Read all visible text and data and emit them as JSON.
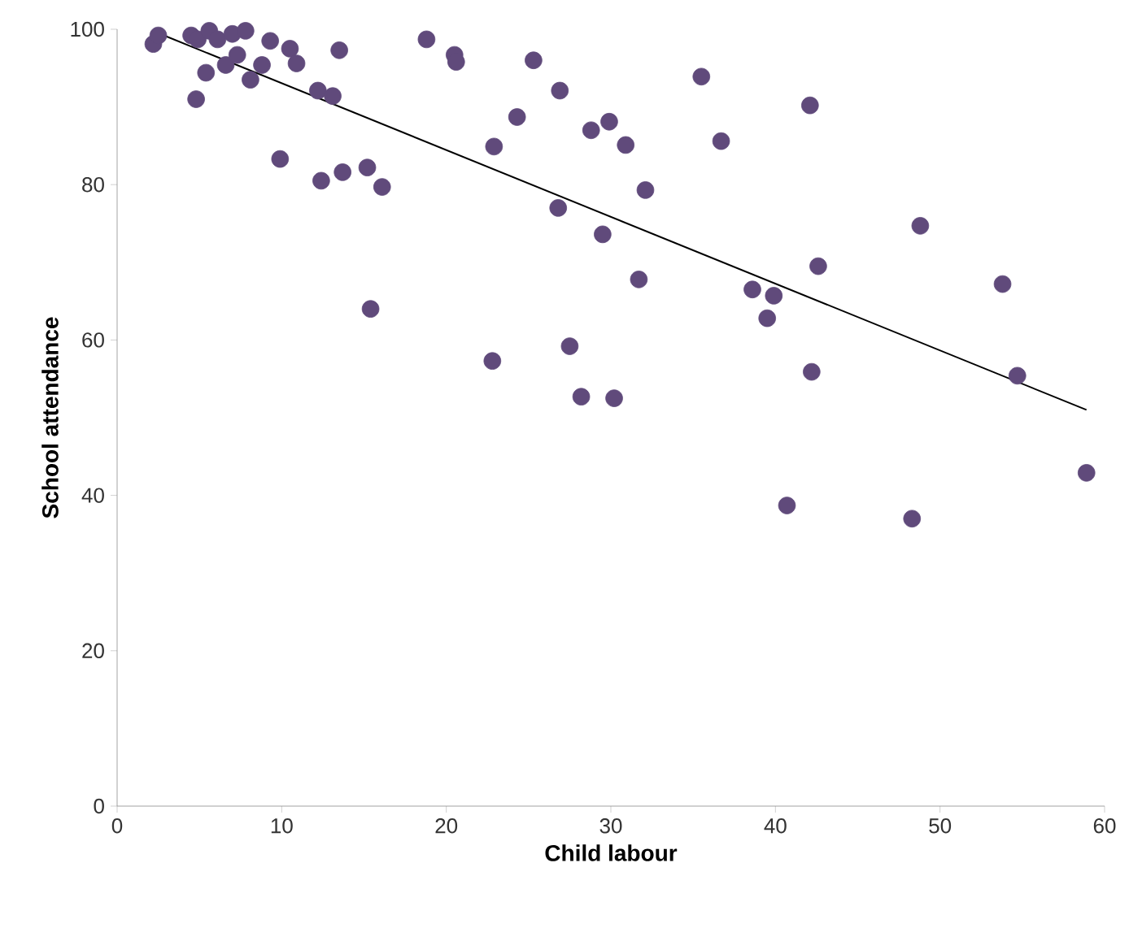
{
  "chart_data": {
    "type": "scatter",
    "xlabel": "Child labour",
    "ylabel": "School attendance",
    "xlim": [
      0,
      60
    ],
    "ylim": [
      0,
      100
    ],
    "xticks": [
      0,
      10,
      20,
      30,
      40,
      50,
      60
    ],
    "yticks": [
      0,
      20,
      40,
      60,
      80,
      100
    ],
    "grid": false,
    "series": [
      {
        "marker": "circle",
        "color": "#604a7b",
        "x": [
          2.2,
          2.5,
          4.5,
          4.9,
          4.8,
          5.4,
          5.6,
          6.1,
          6.6,
          7.0,
          7.3,
          7.8,
          8.1,
          8.8,
          9.3,
          9.9,
          10.5,
          10.9,
          12.2,
          12.4,
          13.1,
          13.5,
          13.7,
          15.2,
          15.4,
          16.1,
          18.8,
          20.5,
          20.6,
          22.8,
          22.9,
          24.3,
          25.3,
          26.9,
          26.8,
          27.5,
          28.2,
          28.8,
          29.5,
          29.9,
          30.2,
          30.9,
          31.7,
          32.1,
          35.5,
          36.7,
          38.6,
          39.5,
          39.9,
          40.7,
          42.1,
          42.2,
          42.6,
          48.3,
          48.8,
          53.8,
          54.7,
          58.9
        ],
        "values": [
          98.1,
          99.2,
          99.2,
          98.7,
          91.0,
          94.4,
          99.8,
          98.7,
          95.4,
          99.4,
          96.7,
          99.8,
          93.5,
          95.4,
          98.5,
          83.3,
          97.5,
          95.6,
          92.1,
          80.5,
          91.4,
          97.3,
          81.6,
          82.2,
          64.0,
          79.7,
          98.7,
          96.7,
          95.8,
          57.3,
          84.9,
          88.7,
          96.0,
          92.1,
          77.0,
          59.2,
          52.7,
          87.0,
          73.6,
          88.1,
          52.5,
          85.1,
          67.8,
          79.3,
          93.9,
          85.6,
          66.5,
          62.8,
          65.7,
          38.7,
          90.2,
          55.9,
          69.5,
          37.0,
          74.7,
          67.2,
          55.4,
          42.9
        ]
      },
      {
        "type": "line",
        "color": "#000000",
        "marker": "none",
        "line_style": "solid",
        "x": [
          2.5,
          58.9
        ],
        "values": [
          99.5,
          51.0
        ]
      }
    ]
  }
}
